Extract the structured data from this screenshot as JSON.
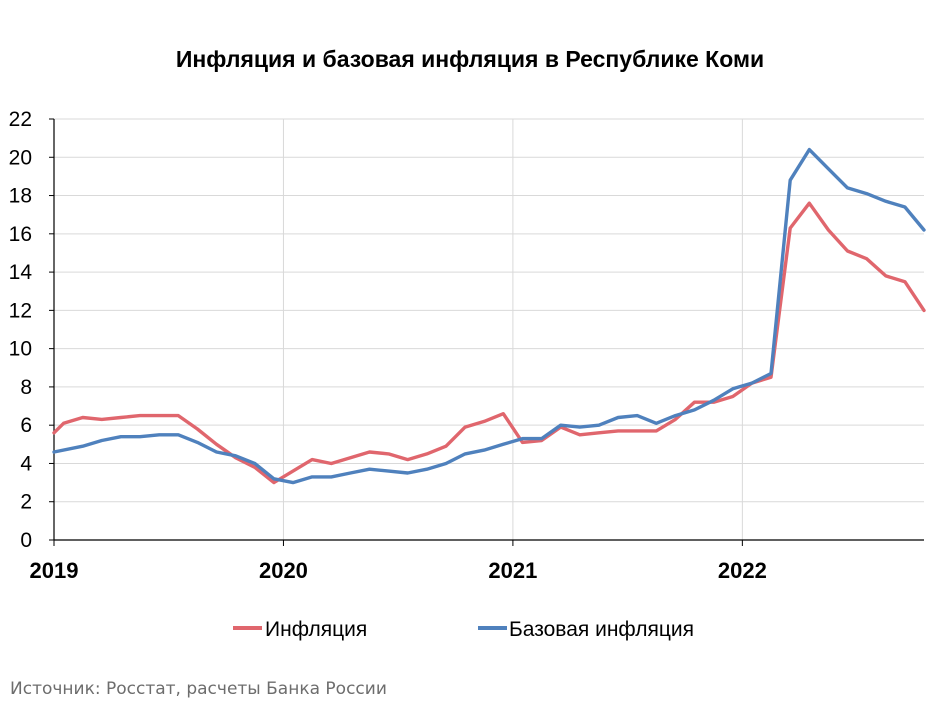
{
  "chart_data": {
    "type": "line",
    "title": "Инфляция и базовая инфляция в Республике Коми",
    "xlabel": "",
    "ylabel": "",
    "x_ticks": [
      "2019",
      "2020",
      "2021",
      "2022"
    ],
    "x_tick_months": [
      0,
      12,
      24,
      36
    ],
    "x_range_months": [
      0,
      45.5
    ],
    "y_ticks": [
      "0",
      "2",
      "4",
      "6",
      "8",
      "10",
      "12",
      "14",
      "16",
      "18",
      "20",
      "22"
    ],
    "ylim": [
      0,
      22
    ],
    "grid": true,
    "legend_position": "bottom",
    "series": [
      {
        "name": "Инфляция",
        "color": "#e0666d",
        "x_months": [
          0,
          0.5,
          1.5,
          2.5,
          3.5,
          4.5,
          5.5,
          6.5,
          7.5,
          8.5,
          9.5,
          10.5,
          11.5,
          12.5,
          13.5,
          14.5,
          15.5,
          16.5,
          17.5,
          18.5,
          19.5,
          20.5,
          21.5,
          22.5,
          23.5,
          24.5,
          25.5,
          26.5,
          27.5,
          28.5,
          29.5,
          30.5,
          31.5,
          32.5,
          33.5,
          34.5,
          35.5,
          36.5,
          37.5,
          38.5,
          39.5,
          40.5,
          41.5,
          42.5,
          43.5,
          44.5,
          45.5
        ],
        "values": [
          5.6,
          6.1,
          6.4,
          6.3,
          6.4,
          6.5,
          6.5,
          6.5,
          5.8,
          5.0,
          4.3,
          3.8,
          3.0,
          3.6,
          4.2,
          4.0,
          4.3,
          4.6,
          4.5,
          4.2,
          4.5,
          4.9,
          5.9,
          6.2,
          6.6,
          5.1,
          5.2,
          5.9,
          5.5,
          5.6,
          5.7,
          5.7,
          5.7,
          6.3,
          7.2,
          7.2,
          7.5,
          8.2,
          8.5,
          16.3,
          17.6,
          16.2,
          15.1,
          14.7,
          13.8,
          13.5,
          12.0
        ]
      },
      {
        "name": "Базовая инфляция",
        "color": "#4f81bd",
        "x_months": [
          0,
          1.5,
          2.5,
          3.5,
          4.5,
          5.5,
          6.5,
          7.5,
          8.5,
          9.5,
          10.5,
          11.5,
          12.5,
          13.5,
          14.5,
          15.5,
          16.5,
          17.5,
          18.5,
          19.5,
          20.5,
          21.5,
          22.5,
          23.5,
          24.5,
          25.5,
          26.5,
          27.5,
          28.5,
          29.5,
          30.5,
          31.5,
          32.5,
          33.5,
          34.5,
          35.5,
          36.5,
          37.5,
          38.5,
          39.5,
          40.5,
          41.5,
          42.5,
          43.5,
          44.5,
          45.5
        ],
        "values": [
          4.6,
          4.9,
          5.2,
          5.4,
          5.4,
          5.5,
          5.5,
          5.1,
          4.6,
          4.4,
          4.0,
          3.2,
          3.0,
          3.3,
          3.3,
          3.5,
          3.7,
          3.6,
          3.5,
          3.7,
          4.0,
          4.5,
          4.7,
          5.0,
          5.3,
          5.3,
          6.0,
          5.9,
          6.0,
          6.4,
          6.5,
          6.1,
          6.5,
          6.8,
          7.3,
          7.9,
          8.2,
          8.7,
          18.8,
          20.4,
          19.4,
          18.4,
          18.1,
          17.7,
          17.4,
          16.2
        ]
      }
    ]
  },
  "source_note": "Источник: Росстат, расчеты Банка России"
}
